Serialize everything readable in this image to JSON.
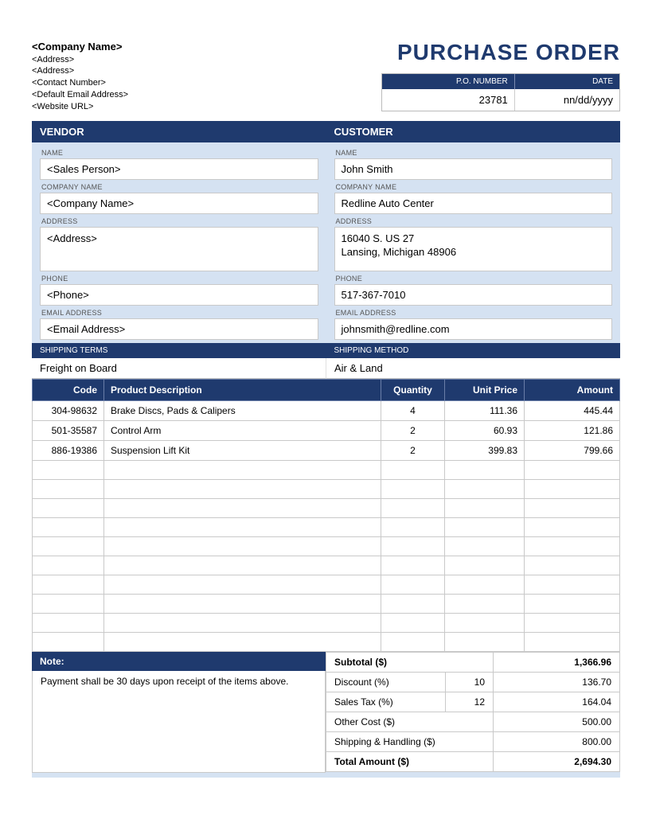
{
  "colors": {
    "navy": "#1f3a6e",
    "light_blue": "#d5e2f2",
    "border_gray": "#c9c9c9",
    "white": "#ffffff",
    "label_gray": "#555555"
  },
  "header": {
    "company_name": "<Company Name>",
    "address1": "<Address>",
    "address2": "<Address>",
    "contact": "<Contact Number>",
    "email": "<Default Email Address>",
    "website": "<Website URL>",
    "title": "PURCHASE ORDER",
    "po_number_label": "P.O. NUMBER",
    "date_label": "DATE",
    "po_number": "23781",
    "date": "nn/dd/yyyy"
  },
  "sections": {
    "vendor_title": "VENDOR",
    "customer_title": "CUSTOMER",
    "labels": {
      "name": "NAME",
      "company": "COMPANY NAME",
      "address": "ADDRESS",
      "phone": "PHONE",
      "email": "EMAIL ADDRESS"
    },
    "vendor": {
      "name": "<Sales Person>",
      "company": "<Company Name>",
      "address": "<Address>",
      "phone": "<Phone>",
      "email": "<Email Address>"
    },
    "customer": {
      "name": "John Smith",
      "company": "Redline Auto Center",
      "address_line1": "16040 S. US 27",
      "address_line2": "Lansing, Michigan 48906",
      "phone": "517-367-7010",
      "email": "johnsmith@redline.com"
    }
  },
  "shipping": {
    "terms_label": "SHIPPING TERMS",
    "method_label": "SHIPPING METHOD",
    "terms": "Freight on Board",
    "method": "Air & Land"
  },
  "items_table": {
    "headers": {
      "code": "Code",
      "desc": "Product Description",
      "qty": "Quantity",
      "price": "Unit Price",
      "amount": "Amount"
    },
    "rows": [
      {
        "code": "304-98632",
        "desc": "Brake Discs, Pads & Calipers",
        "qty": "4",
        "price": "111.36",
        "amount": "445.44"
      },
      {
        "code": "501-35587",
        "desc": "Control Arm",
        "qty": "2",
        "price": "60.93",
        "amount": "121.86"
      },
      {
        "code": "886-19386",
        "desc": "Suspension Lift Kit",
        "qty": "2",
        "price": "399.83",
        "amount": "799.66"
      }
    ],
    "empty_rows": 10
  },
  "note": {
    "label": "Note:",
    "text": "Payment shall be 30 days upon receipt of the items above."
  },
  "totals": {
    "subtotal_label": "Subtotal ($)",
    "subtotal": "1,366.96",
    "discount_label": "Discount (%)",
    "discount_pct": "10",
    "discount_amt": "136.70",
    "tax_label": "Sales Tax (%)",
    "tax_pct": "12",
    "tax_amt": "164.04",
    "other_label": "Other Cost ($)",
    "other_amt": "500.00",
    "ship_label": "Shipping & Handling ($)",
    "ship_amt": "800.00",
    "total_label": "Total Amount ($)",
    "total": "2,694.30"
  }
}
